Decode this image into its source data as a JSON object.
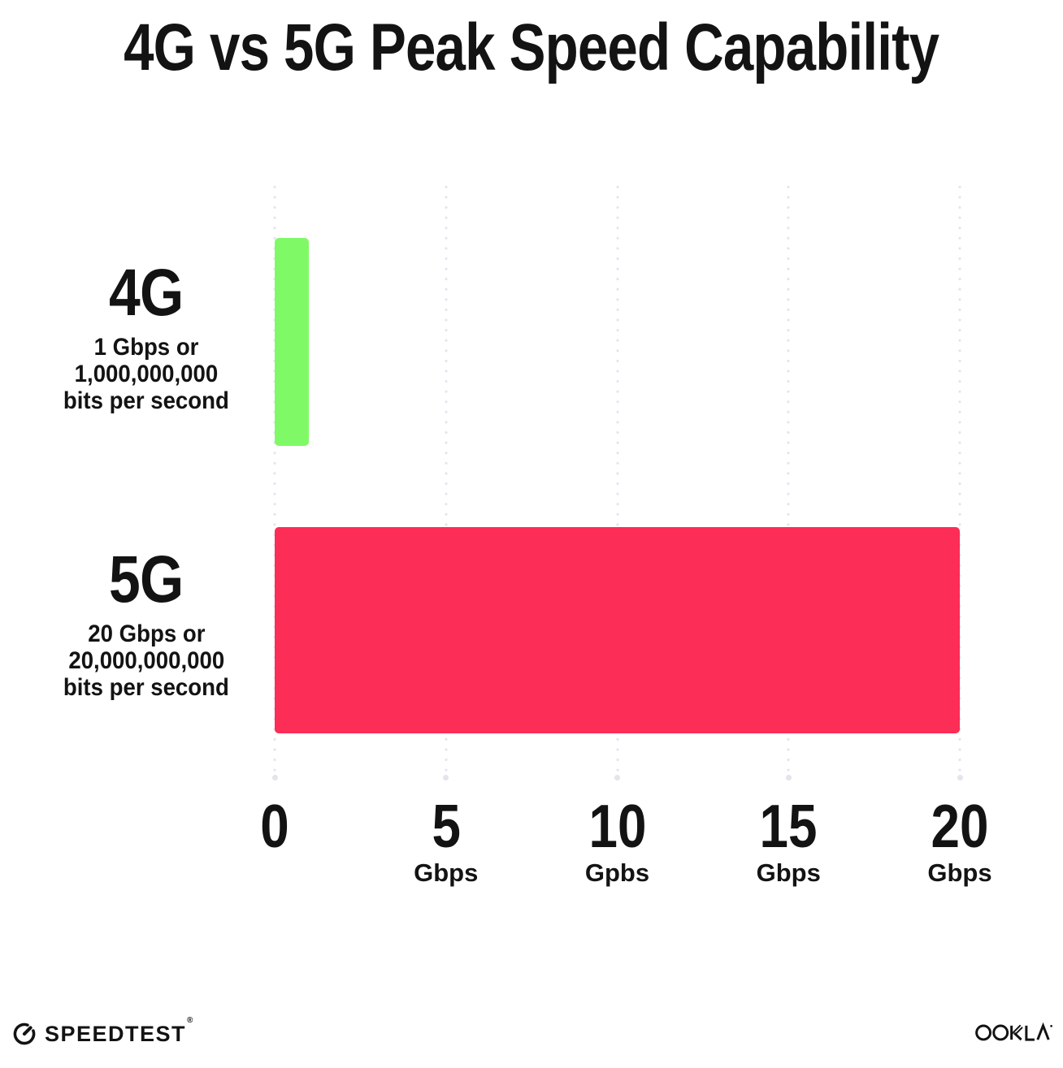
{
  "title": "4G vs 5G Peak Speed Capability",
  "chart_data": {
    "type": "bar",
    "orientation": "horizontal",
    "title": "4G vs 5G Peak Speed Capability",
    "categories": [
      "4G",
      "5G"
    ],
    "values": [
      1,
      20
    ],
    "value_unit": "Gbps",
    "xlim": [
      0,
      20
    ],
    "x_tick_values": [
      0,
      5,
      10,
      15,
      20
    ],
    "x_ticks": [
      {
        "label": "0",
        "unit": ""
      },
      {
        "label": "5",
        "unit": "Gbps"
      },
      {
        "label": "10",
        "unit": "Gpbs"
      },
      {
        "label": "15",
        "unit": "Gbps"
      },
      {
        "label": "20",
        "unit": "Gbps"
      }
    ],
    "grid": "dotted-vertical",
    "legend": "none",
    "bar_colors": [
      "#7FFA66",
      "#FC2D56"
    ],
    "annotations": [
      "4G: 1 Gbps or 1,000,000,000 bits per second",
      "5G: 20 Gbps or 20,000,000,000 bits per second"
    ]
  },
  "rows": [
    {
      "heading": "4G",
      "sub_line1": "1 Gbps or",
      "sub_line2": "1,000,000,000",
      "sub_line3": "bits per second"
    },
    {
      "heading": "5G",
      "sub_line1": "20 Gbps or",
      "sub_line2": "20,000,000,000",
      "sub_line3": "bits per second"
    }
  ],
  "footer": {
    "speedtest_label": "SPEEDTEST",
    "speedtest_trademark": "®",
    "ookla_label": "OOKLA"
  },
  "colors": {
    "bar_4g": "#7FFA66",
    "bar_5g": "#FC2D56",
    "gridline": "#E2E4EF",
    "text": "#131313",
    "background": "#FFFFFF"
  }
}
